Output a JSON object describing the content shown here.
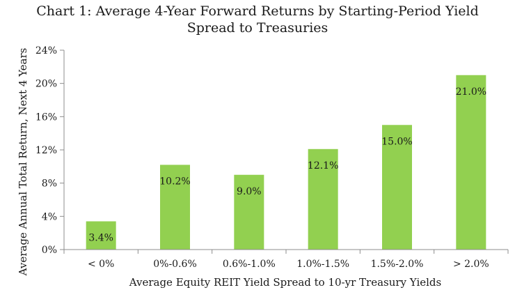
{
  "chart_data": {
    "type": "bar",
    "title": "Chart 1: Average 4-Year Forward Returns by Starting-Period Yield Spread to Treasuries",
    "title_lines": [
      "Chart 1: Average 4-Year Forward Returns by Starting-Period Yield",
      "Spread to Treasuries"
    ],
    "xlabel": "Average Equity REIT Yield Spread to 10-yr Treasury Yields",
    "ylabel": "Average Annual Total Return, Next 4 Years",
    "categories": [
      "< 0%",
      "0%-0.6%",
      "0.6%-1.0%",
      "1.0%-1.5%",
      "1.5%-2.0%",
      "> 2.0%"
    ],
    "values": [
      3.4,
      10.2,
      9.0,
      12.1,
      15.0,
      21.0
    ],
    "data_labels": [
      "3.4%",
      "10.2%",
      "9.0%",
      "12.1%",
      "15.0%",
      "21.0%"
    ],
    "y_ticks": [
      0,
      4,
      8,
      12,
      16,
      20,
      24
    ],
    "y_tick_labels": [
      "0%",
      "4%",
      "8%",
      "12%",
      "16%",
      "20%",
      "24%"
    ],
    "ylim": [
      0,
      24
    ],
    "grid": false,
    "legend": "none",
    "bar_color": "#92d050",
    "axis_color": "#8c8c8c"
  }
}
